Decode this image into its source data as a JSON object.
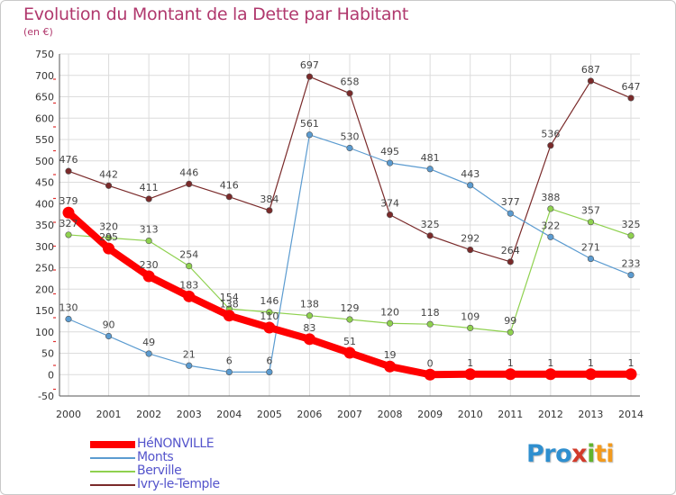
{
  "title": "Evolution du Montant de la Dette par Habitant",
  "unit": "(en €)",
  "logo_text": "Proxiti",
  "chart_data": {
    "type": "line",
    "title": "Evolution du Montant de la Dette par Habitant",
    "subtitle": "(en €)",
    "xlabel": "",
    "ylabel": "",
    "x": [
      "2000",
      "2001",
      "2002",
      "2003",
      "2004",
      "2005",
      "2006",
      "2007",
      "2008",
      "2009",
      "2010",
      "2011",
      "2012",
      "2013",
      "2014"
    ],
    "ylim": [
      -50,
      750
    ],
    "yticks": [
      -50,
      0,
      50,
      100,
      150,
      200,
      250,
      300,
      350,
      400,
      450,
      500,
      550,
      600,
      650,
      700,
      750
    ],
    "grid": true,
    "legend_position": "bottom-left",
    "series": [
      {
        "name": "HéNONVILLE",
        "color": "#ff0000",
        "values": [
          379,
          295,
          230,
          183,
          138,
          110,
          83,
          51,
          19,
          0,
          1,
          1,
          1,
          1,
          1
        ],
        "labels": [
          "379",
          "295",
          "230",
          "183",
          "138",
          "110",
          "83",
          "51",
          "19",
          "0",
          "1",
          "1",
          "1",
          "1",
          "1"
        ]
      },
      {
        "name": "Monts",
        "color": "#5b9bd0",
        "values": [
          130,
          90,
          49,
          21,
          6,
          6,
          561,
          530,
          495,
          481,
          443,
          377,
          322,
          271,
          233
        ],
        "labels": [
          "130",
          "90",
          "49",
          "21",
          "6",
          "6",
          "561",
          "530",
          "495",
          "481",
          "443",
          "377",
          "322",
          "271",
          "233"
        ]
      },
      {
        "name": "Berville",
        "color": "#8fd14f",
        "values": [
          327,
          320,
          313,
          254,
          154,
          146,
          138,
          129,
          120,
          118,
          109,
          99,
          388,
          357,
          325
        ],
        "labels": [
          "327",
          "320",
          "313",
          "254",
          "154",
          "146",
          "138",
          "129",
          "120",
          "118",
          "109",
          "99",
          "388",
          "357",
          "325"
        ]
      },
      {
        "name": "Ivry-le-Temple",
        "color": "#7a2a2a",
        "values": [
          476,
          442,
          411,
          446,
          416,
          384,
          697,
          658,
          374,
          325,
          292,
          264,
          536,
          687,
          647
        ],
        "labels": [
          "476",
          "442",
          "411",
          "446",
          "416",
          "384",
          "697",
          "658",
          "374",
          "325",
          "292",
          "264",
          "536",
          "687",
          "647"
        ]
      }
    ]
  }
}
